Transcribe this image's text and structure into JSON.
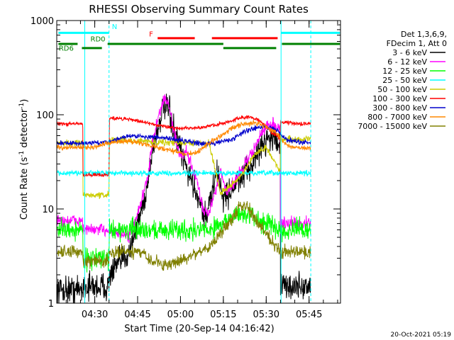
{
  "chart_data": {
    "type": "line",
    "title": "RHESSI Observing Summary Count Rates",
    "xlabel": "Start Time (20-Sep-14 04:16:42)",
    "ylabel_main": "Count Rate (s",
    "ylabel_sup": "-1",
    "ylabel_rest": " detector",
    "ylabel_end": ")",
    "y_scale": "log",
    "ylim": [
      1,
      1000
    ],
    "x_range_minutes": [
      16.7,
      116.0
    ],
    "x_ticks": [
      {
        "min": 30,
        "label": "04:30"
      },
      {
        "min": 45,
        "label": "04:45"
      },
      {
        "min": 60,
        "label": "05:00"
      },
      {
        "min": 75,
        "label": "05:15"
      },
      {
        "min": 90,
        "label": "05:30"
      },
      {
        "min": 105,
        "label": "05:45"
      }
    ],
    "y_ticks": [
      {
        "value": 1,
        "label": "1"
      },
      {
        "value": 10,
        "label": "10"
      },
      {
        "value": 100,
        "label": "100"
      },
      {
        "value": 1000,
        "label": "1000"
      }
    ],
    "legend_header": [
      "Det 1,3,6,9,",
      "FDecim 1, Att 0"
    ],
    "legend_position": "right",
    "timestamp": "20-Oct-2021 05:19",
    "series": [
      {
        "name": "3 - 6 keV",
        "color": "#000000",
        "x": [
          17,
          25.8,
          25.9,
          35,
          35.1,
          42,
          45,
          48,
          50,
          52,
          54,
          56,
          58,
          62,
          66,
          69,
          71,
          73,
          75,
          77,
          79,
          81,
          83,
          85,
          87,
          89,
          91,
          93,
          94.9,
          95,
          104,
          105.6
        ],
        "y": [
          1.4,
          1.4,
          1.5,
          1.5,
          2,
          3.5,
          7,
          15,
          40,
          70,
          120,
          110,
          60,
          28,
          14,
          8,
          15,
          25,
          13,
          15,
          18,
          20,
          24,
          30,
          40,
          50,
          60,
          55,
          50,
          1.5,
          1.5,
          1.5
        ]
      },
      {
        "name": "6 - 12 keV",
        "color": "#ff00ff",
        "x": [
          17,
          25.8,
          25.9,
          35,
          35.1,
          42,
          45,
          48,
          50,
          52,
          54,
          55,
          56,
          58,
          60,
          62,
          64,
          66,
          68,
          70,
          72,
          74,
          76,
          78,
          80,
          82,
          84,
          86,
          88,
          90,
          92,
          94.9,
          95,
          105.6
        ],
        "y": [
          7.5,
          7.5,
          6,
          6,
          6,
          5,
          9,
          18,
          45,
          90,
          140,
          150,
          120,
          60,
          35,
          40,
          28,
          18,
          10,
          9,
          15,
          25,
          15,
          18,
          22,
          28,
          35,
          45,
          60,
          75,
          80,
          70,
          7,
          7
        ]
      },
      {
        "name": "12 - 25 keV",
        "color": "#00ff00",
        "x": [
          17,
          25.8,
          25.9,
          35,
          35.1,
          60,
          70,
          74,
          78,
          82,
          86,
          90,
          94.9,
          95,
          105.6
        ],
        "y": [
          6,
          6,
          3,
          3,
          6,
          6,
          6,
          7,
          8,
          9,
          8,
          7,
          6,
          6,
          6
        ]
      },
      {
        "name": "25 - 50 keV",
        "color": "#00ffff",
        "x": [
          17,
          105.6
        ],
        "y": [
          24,
          24
        ]
      },
      {
        "name": "50 - 100 keV",
        "color": "#cccc00",
        "x": [
          17,
          25.8,
          25.9,
          35,
          35.1,
          48,
          60,
          70,
          74,
          78,
          82,
          86,
          90,
          94.9,
          95,
          105.6
        ],
        "y": [
          50,
          50,
          14,
          14,
          55,
          52,
          50,
          50,
          15,
          18,
          24,
          38,
          45,
          25,
          55,
          55
        ]
      },
      {
        "name": "100 - 300 keV",
        "color": "#ff0000",
        "x": [
          17,
          25.8,
          25.9,
          35,
          35.1,
          42,
          50,
          58,
          66,
          74,
          80,
          84,
          88,
          92,
          94.9,
          95,
          100,
          105.6
        ],
        "y": [
          80,
          80,
          23,
          23,
          92,
          90,
          80,
          72,
          72,
          80,
          90,
          95,
          85,
          65,
          55,
          85,
          80,
          80
        ]
      },
      {
        "name": "300 - 800 keV",
        "color": "#0000cc",
        "x": [
          17,
          30,
          35,
          42,
          50,
          58,
          66,
          72,
          78,
          82,
          86,
          90,
          94,
          97,
          100,
          105.6
        ],
        "y": [
          50,
          50,
          52,
          60,
          58,
          55,
          50,
          50,
          55,
          65,
          72,
          75,
          68,
          55,
          52,
          50
        ]
      },
      {
        "name": "800 - 7000 keV",
        "color": "#ff8800",
        "x": [
          17,
          30,
          35,
          42,
          50,
          56,
          62,
          66,
          70,
          74,
          78,
          82,
          86,
          90,
          94,
          97,
          100,
          105.6
        ],
        "y": [
          45,
          45,
          50,
          53,
          47,
          42,
          38,
          40,
          50,
          60,
          72,
          80,
          82,
          75,
          62,
          48,
          45,
          44
        ]
      },
      {
        "name": "7000 - 15000 keV",
        "color": "#808000",
        "x": [
          17,
          25.8,
          25.9,
          35,
          35.1,
          45,
          50,
          55,
          60,
          66,
          70,
          74,
          78,
          80,
          82,
          84,
          86,
          90,
          94.9,
          95,
          105.6
        ],
        "y": [
          3.5,
          3.5,
          2.8,
          2.8,
          3.5,
          3.5,
          2.8,
          2.5,
          2.8,
          3.5,
          4,
          5.5,
          8,
          10,
          11,
          10,
          8,
          5.5,
          3.5,
          3.5,
          3.5
        ]
      }
    ],
    "annotations": [
      {
        "label": "N",
        "color": "#00ffff"
      },
      {
        "label": "F",
        "color": "#ff0000"
      },
      {
        "label": "RD0",
        "color": "#008000"
      },
      {
        "label": "RD6",
        "color": "#008000"
      }
    ]
  }
}
